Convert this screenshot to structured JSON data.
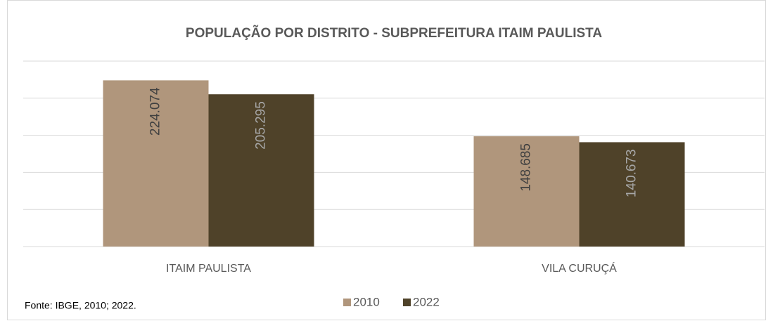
{
  "chart_data": {
    "type": "bar",
    "title": "POPULAÇÃO POR DISTRITO - SUBPREFEITURA ITAIM PAULISTA",
    "categories": [
      "ITAIM PAULISTA",
      "VILA CURUÇÁ"
    ],
    "series": [
      {
        "name": "2010",
        "color": "#b0967c",
        "label_color": "#404040",
        "values": [
          224074,
          148685
        ],
        "value_labels": [
          "224.074",
          "148.685"
        ]
      },
      {
        "name": "2022",
        "color": "#4f4229",
        "label_color": "#a6a6a6",
        "values": [
          205295,
          140673
        ],
        "value_labels": [
          "205.295",
          "140.673"
        ]
      }
    ],
    "ylim": [
      0,
      250000
    ],
    "yticks": [
      0,
      50000,
      100000,
      150000,
      200000,
      250000
    ],
    "grid": true,
    "legend": "bottom",
    "source": "Fonte: IBGE, 2010; 2022."
  }
}
